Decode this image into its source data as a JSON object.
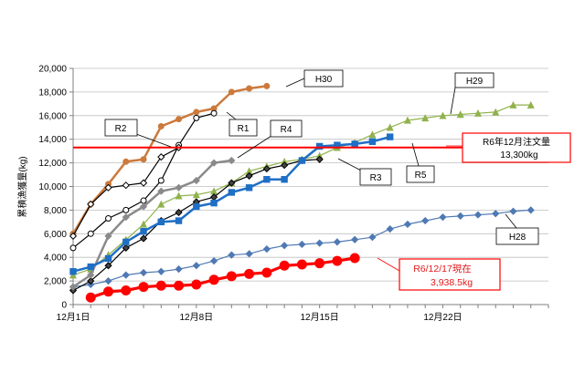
{
  "chart_data": {
    "type": "line",
    "title": "",
    "xlabel": "",
    "ylabel": "累積漁獲量(kg)",
    "xlim": [
      1,
      28
    ],
    "ylim": [
      0,
      20000
    ],
    "x_ticks": [
      {
        "x": 1,
        "label": "12月1日"
      },
      {
        "x": 8,
        "label": "12月8日"
      },
      {
        "x": 15,
        "label": "12月15日"
      },
      {
        "x": 22,
        "label": "12月22日"
      }
    ],
    "y_ticks": [
      {
        "y": 0,
        "label": "0"
      },
      {
        "y": 2000,
        "label": "2,000"
      },
      {
        "y": 4000,
        "label": "4,000"
      },
      {
        "y": 6000,
        "label": "6,000"
      },
      {
        "y": 8000,
        "label": "8,000"
      },
      {
        "y": 10000,
        "label": "10,000"
      },
      {
        "y": 12000,
        "label": "12,000"
      },
      {
        "y": 14000,
        "label": "14,000"
      },
      {
        "y": 16000,
        "label": "16,000"
      },
      {
        "y": 18000,
        "label": "18,000"
      },
      {
        "y": 20000,
        "label": "20,000"
      }
    ],
    "series": [
      {
        "name": "H30",
        "color": "#cc7a3c",
        "marker": "circle",
        "marker_fill": "#cc7a3c",
        "width": 2.5,
        "x": [
          1,
          2,
          3,
          4,
          5,
          6,
          7,
          8,
          9,
          10,
          11,
          12
        ],
        "y": [
          6000,
          8500,
          10200,
          12100,
          12300,
          15100,
          15700,
          16300,
          16600,
          18000,
          18300,
          18500
        ]
      },
      {
        "name": "H29",
        "color": "#90b24c",
        "marker": "triangle",
        "marker_fill": "#90b24c",
        "width": 1.2,
        "x": [
          1,
          2,
          3,
          4,
          5,
          6,
          7,
          8,
          9,
          10,
          11,
          12,
          13,
          14,
          15,
          16,
          17,
          18,
          19,
          20,
          21,
          22,
          23,
          24,
          25,
          26,
          27
        ],
        "y": [
          2500,
          3000,
          4200,
          5500,
          6800,
          8500,
          9200,
          9300,
          9600,
          10300,
          11300,
          11700,
          12100,
          12300,
          12600,
          13300,
          13700,
          14400,
          15000,
          15600,
          15800,
          16000,
          16100,
          16200,
          16300,
          16900,
          16900
        ]
      },
      {
        "name": "H28",
        "color": "#4f79b3",
        "marker": "diamond",
        "marker_fill": "#4f79b3",
        "width": 1.2,
        "x": [
          1,
          2,
          3,
          4,
          5,
          6,
          7,
          8,
          9,
          10,
          11,
          12,
          13,
          14,
          15,
          16,
          17,
          18,
          19,
          20,
          21,
          22,
          23,
          24,
          25,
          26,
          27
        ],
        "y": [
          1500,
          1700,
          2000,
          2500,
          2700,
          2800,
          3000,
          3300,
          3700,
          4200,
          4300,
          4700,
          5000,
          5100,
          5200,
          5300,
          5500,
          5700,
          6400,
          6800,
          7100,
          7400,
          7500,
          7600,
          7700,
          7900,
          8000
        ]
      },
      {
        "name": "R1",
        "color": "#000000",
        "marker": "circle",
        "marker_fill": "#ffffff",
        "width": 1.2,
        "x": [
          1,
          2,
          3,
          4,
          5,
          6,
          7,
          8,
          9
        ],
        "y": [
          4800,
          6000,
          7300,
          8000,
          8800,
          10500,
          13500,
          15800,
          16200
        ]
      },
      {
        "name": "R2",
        "color": "#000000",
        "marker": "diamond",
        "marker_fill": "#ffffff",
        "width": 1.2,
        "x": [
          1,
          2,
          3,
          4,
          5,
          6,
          7
        ],
        "y": [
          5800,
          8500,
          9900,
          10100,
          10300,
          12500,
          13300
        ]
      },
      {
        "name": "R3",
        "color": "#000000",
        "marker": "diamond",
        "marker_fill": "#444444",
        "width": 1.2,
        "x": [
          1,
          2,
          3,
          4,
          5,
          6,
          7,
          8,
          9,
          10,
          11,
          12,
          13,
          14,
          15
        ],
        "y": [
          1200,
          2000,
          3300,
          4800,
          5600,
          7100,
          7800,
          8700,
          9100,
          10300,
          10900,
          11500,
          11800,
          12200,
          12300
        ]
      },
      {
        "name": "R4",
        "color": "#8a8a8a",
        "marker": "diamond",
        "marker_fill": "#8a8a8a",
        "width": 2.5,
        "x": [
          1,
          2,
          3,
          4,
          5,
          6,
          7,
          8,
          9,
          10
        ],
        "y": [
          1500,
          2500,
          5800,
          7400,
          8300,
          9600,
          9900,
          10500,
          12000,
          12200
        ]
      },
      {
        "name": "R5",
        "color": "#1f6fc5",
        "marker": "square",
        "marker_fill": "#1f6fc5",
        "width": 2.5,
        "x": [
          1,
          2,
          3,
          4,
          5,
          6,
          7,
          8,
          9,
          10,
          11,
          12,
          13,
          14,
          15,
          16,
          17,
          18,
          19
        ],
        "y": [
          2800,
          3200,
          3900,
          5300,
          6200,
          7000,
          7100,
          8300,
          8600,
          9500,
          9900,
          10600,
          10600,
          12200,
          13400,
          13500,
          13600,
          13800,
          14200
        ]
      },
      {
        "name": "R6",
        "color": "#ff0000",
        "marker": "circle",
        "marker_fill": "#ff0000",
        "width": 3.2,
        "x": [
          2,
          3,
          4,
          5,
          6,
          7,
          8,
          9,
          10,
          11,
          12,
          13,
          14,
          15,
          16,
          17
        ],
        "y": [
          600,
          1100,
          1200,
          1500,
          1600,
          1600,
          1700,
          2100,
          2400,
          2600,
          2700,
          3300,
          3400,
          3500,
          3700,
          3938.5
        ]
      }
    ],
    "series_labels": [
      "H30",
      "H29",
      "H28",
      "R1",
      "R2",
      "R3",
      "R4",
      "R5"
    ],
    "reference_line": {
      "y": 13300,
      "color": "#ff0000"
    },
    "annotations": {
      "target_line1": "R6年12月注文量",
      "target_line2": "13,300kg",
      "current_line1": "R6/12/17現在",
      "current_line2": "3,938.5kg"
    }
  }
}
